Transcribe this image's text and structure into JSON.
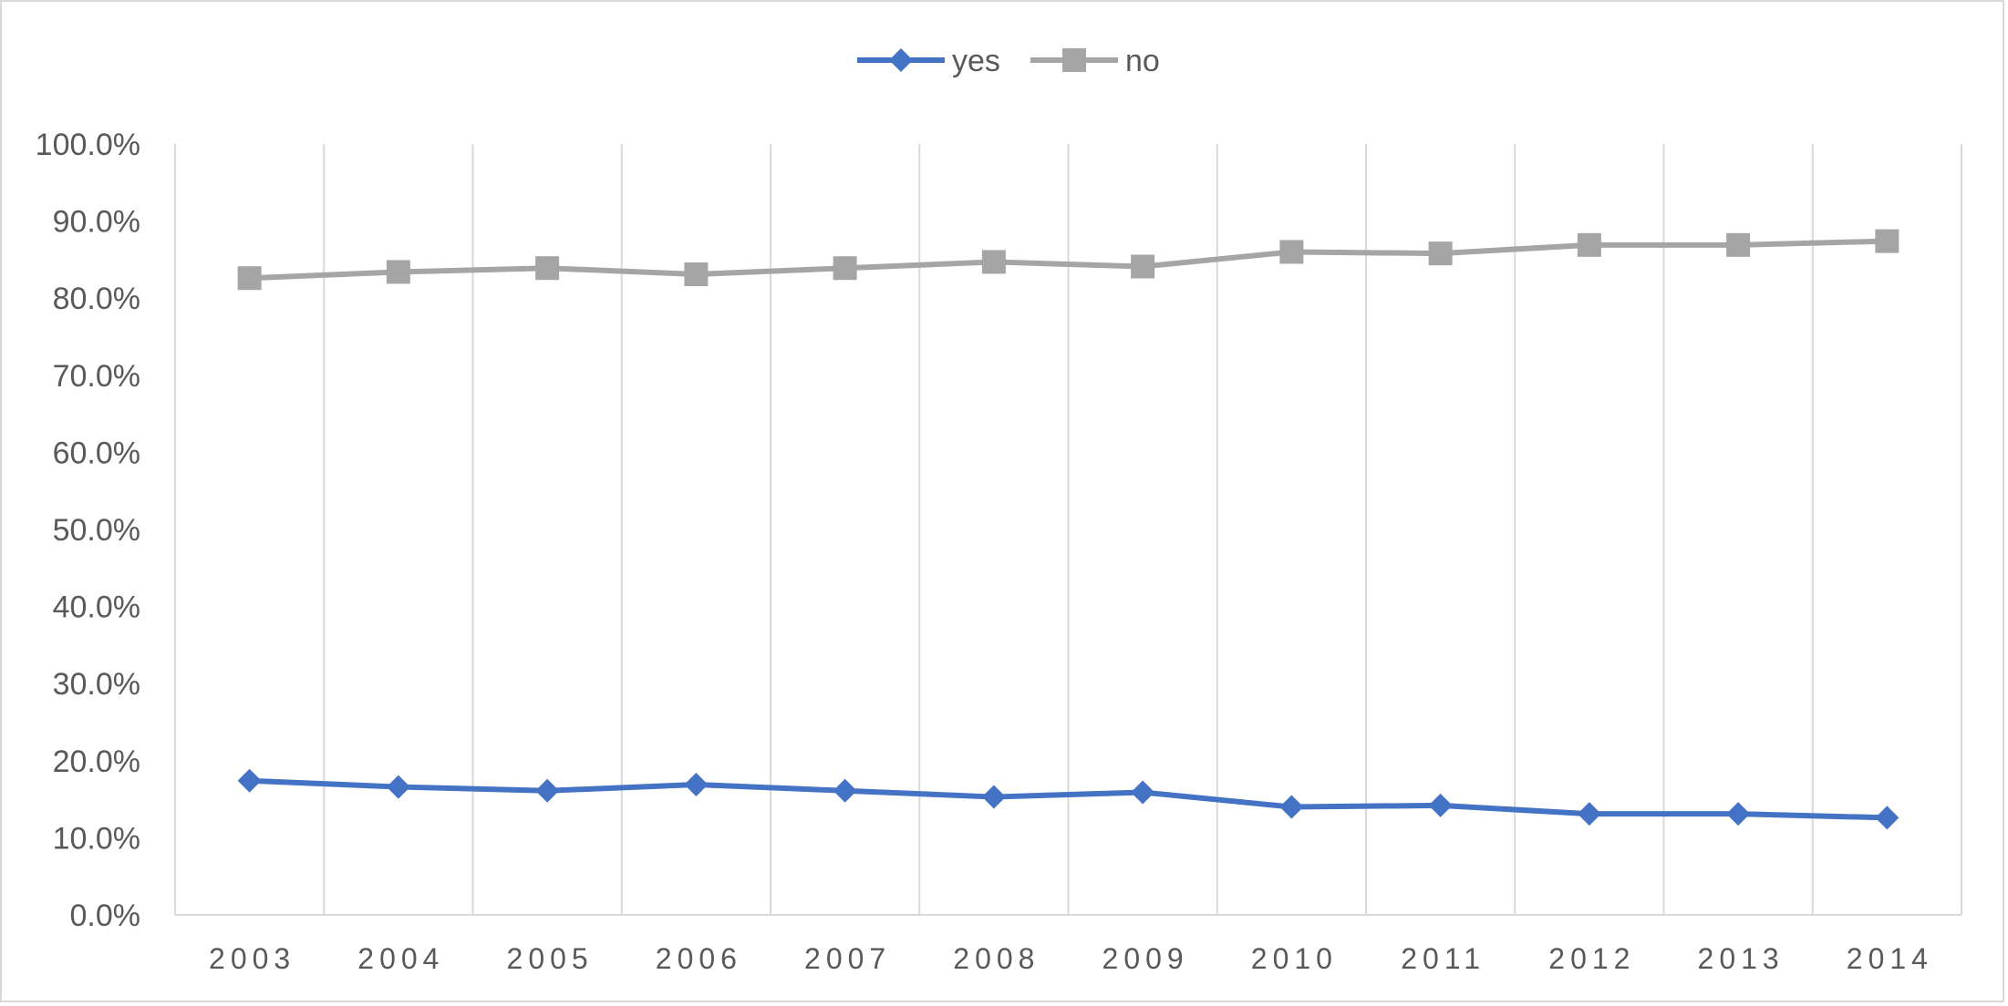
{
  "chart_data": {
    "type": "line",
    "title": "",
    "xlabel": "",
    "ylabel": "",
    "categories": [
      "2003",
      "2004",
      "2005",
      "2006",
      "2007",
      "2008",
      "2009",
      "2010",
      "2011",
      "2012",
      "2013",
      "2014"
    ],
    "ylim": [
      0,
      100
    ],
    "yticks": [
      "0.0%",
      "10.0%",
      "20.0%",
      "30.0%",
      "40.0%",
      "50.0%",
      "60.0%",
      "70.0%",
      "80.0%",
      "90.0%",
      "100.0%"
    ],
    "grid": "vertical",
    "legend_position": "top-center",
    "series": [
      {
        "name": "yes",
        "color": "#4472C4",
        "marker": "diamond",
        "values": [
          17.4,
          16.6,
          16.1,
          16.9,
          16.1,
          15.3,
          15.9,
          14.0,
          14.2,
          13.1,
          13.1,
          12.6
        ]
      },
      {
        "name": "no",
        "color": "#A5A5A5",
        "marker": "square",
        "values": [
          82.6,
          83.4,
          83.9,
          83.1,
          83.9,
          84.7,
          84.1,
          86.0,
          85.8,
          86.9,
          86.9,
          87.4
        ]
      }
    ]
  }
}
